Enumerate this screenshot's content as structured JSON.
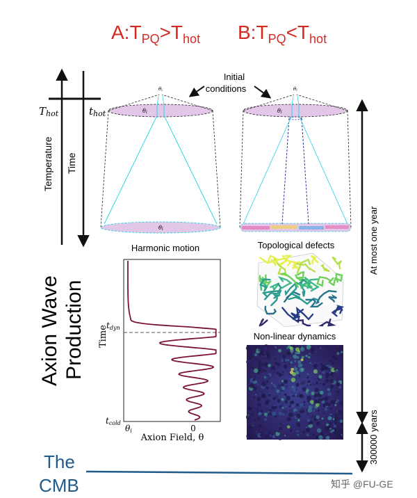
{
  "titles": {
    "scenario_a": "A:T",
    "scenario_a_sub1": "PQ",
    "scenario_a_mid": ">T",
    "scenario_a_sub2": "hot",
    "scenario_b": "B:T",
    "scenario_b_sub1": "PQ",
    "scenario_b_mid": "<T",
    "scenario_b_sub2": "hot"
  },
  "axes": {
    "temperature_label": "Temperature",
    "time_label": "Time",
    "T_hot": "T",
    "T_hot_sub": "hot",
    "t_hot": "t",
    "t_hot_sub": "hot"
  },
  "cones": {
    "initial_conditions_line1": "Initial",
    "initial_conditions_line2": "conditions",
    "theta_i": "θ",
    "theta_i_sub": "i"
  },
  "captions": {
    "harmonic_motion": "Harmonic motion",
    "topological_defects": "Topological defects",
    "nonlinear_dynamics": "Non-linear dynamics"
  },
  "plot": {
    "ylabel": "Time",
    "xlabel": "Axion Field, θ",
    "t_dyn": "t",
    "t_dyn_sub": "dyn",
    "t_cold": "t",
    "t_cold_sub": "cold",
    "theta_i_tick": "θ",
    "theta_i_tick_sub": "i",
    "zero_tick": "0",
    "curve_color": "#7a1238"
  },
  "left_text": {
    "line1": "Axion Wave",
    "line2": "Production"
  },
  "timeline": {
    "at_most_one_year": "At most one year",
    "years_300000": "300000 years"
  },
  "cmb": {
    "line1": "The",
    "line2": "CMB",
    "color": "#1f5a8a"
  },
  "watermark": "知乎 @FU-GE",
  "colors": {
    "title_red": "#d42a22",
    "disk_fill": "#e3c7e8",
    "cyan": "#2fd4e6",
    "blue_dash": "#1a1a9a"
  }
}
